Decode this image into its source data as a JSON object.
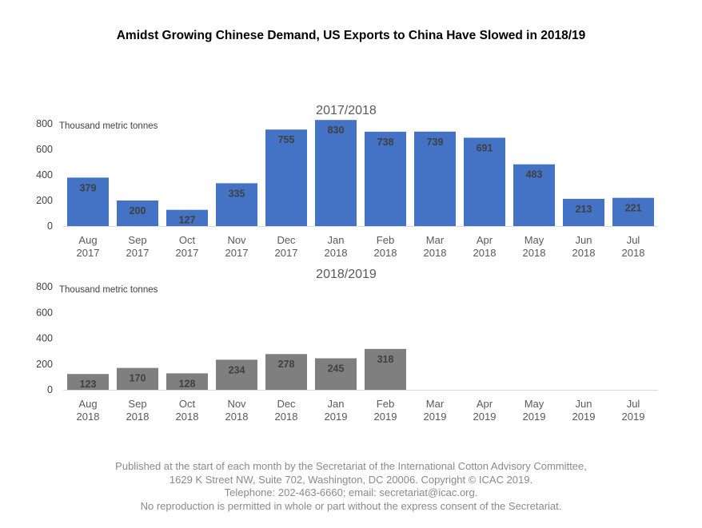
{
  "title": "Amidst Growing Chinese Demand, US Exports to China Have Slowed in 2018/19",
  "footer": {
    "line1": "Published at the start of each month by the Secretariat of the International Cotton Advisory Committee,",
    "line2": "1629 K Street NW, Suite 702, Washington, DC 20006. Copyright © ICAC 2019.",
    "line3": "Telephone: 202-463-6660; email: secretariat@icac.org.",
    "line4": "No reproduction is permitted in whole or part without the express consent of the Secretariat."
  },
  "chart_data": [
    {
      "type": "bar",
      "title": "2017/2018",
      "ylabel": "Thousand metric tonnes",
      "ylim": [
        0,
        800
      ],
      "yticks": [
        0,
        200,
        400,
        600,
        800
      ],
      "grid": false,
      "color": "#4472c4",
      "categories": [
        [
          "Aug",
          "2017"
        ],
        [
          "Sep",
          "2017"
        ],
        [
          "Oct",
          "2017"
        ],
        [
          "Nov",
          "2017"
        ],
        [
          "Dec",
          "2017"
        ],
        [
          "Jan",
          "2018"
        ],
        [
          "Feb",
          "2018"
        ],
        [
          "Mar",
          "2018"
        ],
        [
          "Apr",
          "2018"
        ],
        [
          "May",
          "2018"
        ],
        [
          "Jun",
          "2018"
        ],
        [
          "Jul",
          "2018"
        ]
      ],
      "values": [
        379,
        200,
        127,
        335,
        755,
        830,
        738,
        739,
        691,
        483,
        213,
        221
      ]
    },
    {
      "type": "bar",
      "title": "2018/2019",
      "ylabel": "Thousand metric tonnes",
      "ylim": [
        0,
        800
      ],
      "yticks": [
        0,
        200,
        400,
        600,
        800
      ],
      "grid": false,
      "color": "#7f7f7f",
      "categories": [
        [
          "Aug",
          "2018"
        ],
        [
          "Sep",
          "2018"
        ],
        [
          "Oct",
          "2018"
        ],
        [
          "Nov",
          "2018"
        ],
        [
          "Dec",
          "2018"
        ],
        [
          "Jan",
          "2019"
        ],
        [
          "Feb",
          "2019"
        ],
        [
          "Mar",
          "2019"
        ],
        [
          "Apr",
          "2019"
        ],
        [
          "May",
          "2019"
        ],
        [
          "Jun",
          "2019"
        ],
        [
          "Jul",
          "2019"
        ]
      ],
      "values": [
        123,
        170,
        128,
        234,
        278,
        245,
        318,
        null,
        null,
        null,
        null,
        null
      ]
    }
  ]
}
